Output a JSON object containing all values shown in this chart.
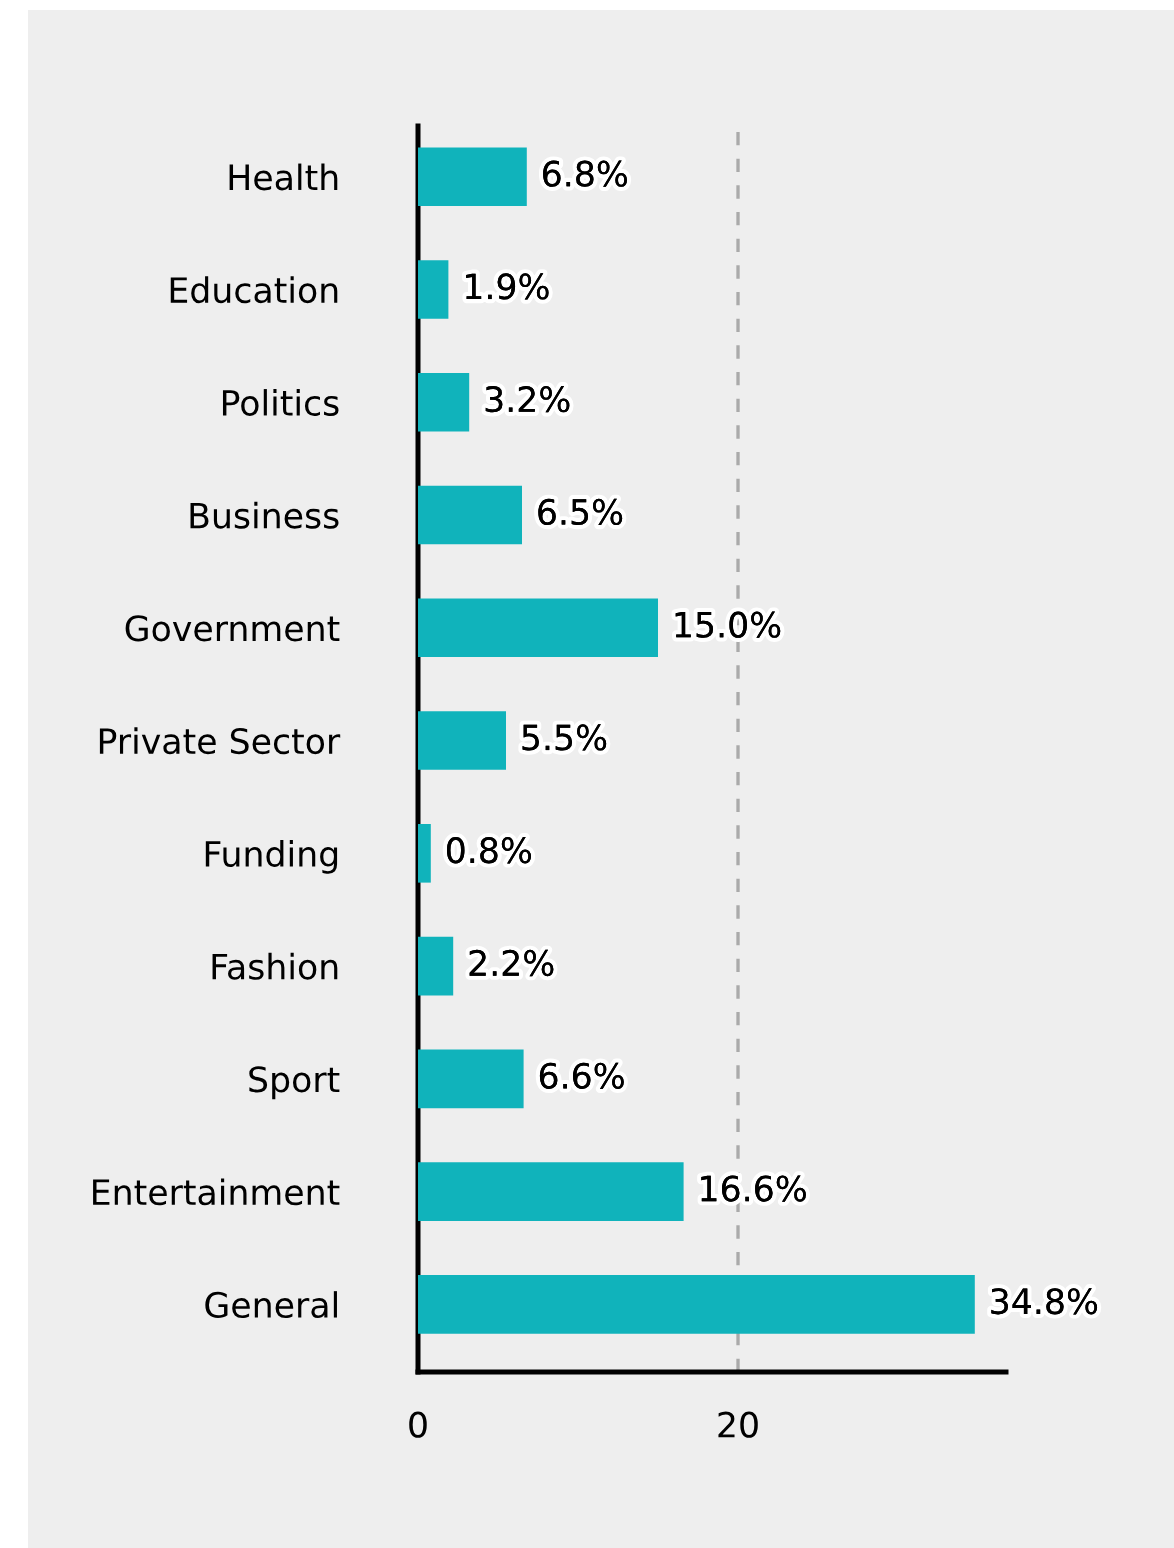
{
  "chart_data": {
    "type": "bar",
    "orientation": "horizontal",
    "categories": [
      "Health",
      "Education",
      "Politics",
      "Business",
      "Government",
      "Private Sector",
      "Funding",
      "Fashion",
      "Sport",
      "Entertainment",
      "General"
    ],
    "values": [
      6.8,
      1.9,
      3.2,
      6.5,
      15.0,
      5.5,
      0.8,
      2.2,
      6.6,
      16.6,
      34.8
    ],
    "value_labels": [
      "6.8%",
      "1.9%",
      "3.2%",
      "6.5%",
      "15.0%",
      "5.5%",
      "0.8%",
      "2.2%",
      "6.6%",
      "16.6%",
      "34.8%"
    ],
    "color": "#10b3bb",
    "xlim": [
      0,
      36.75
    ],
    "xticks": [
      0,
      20
    ],
    "grid": "x",
    "line_style": "dashed"
  }
}
